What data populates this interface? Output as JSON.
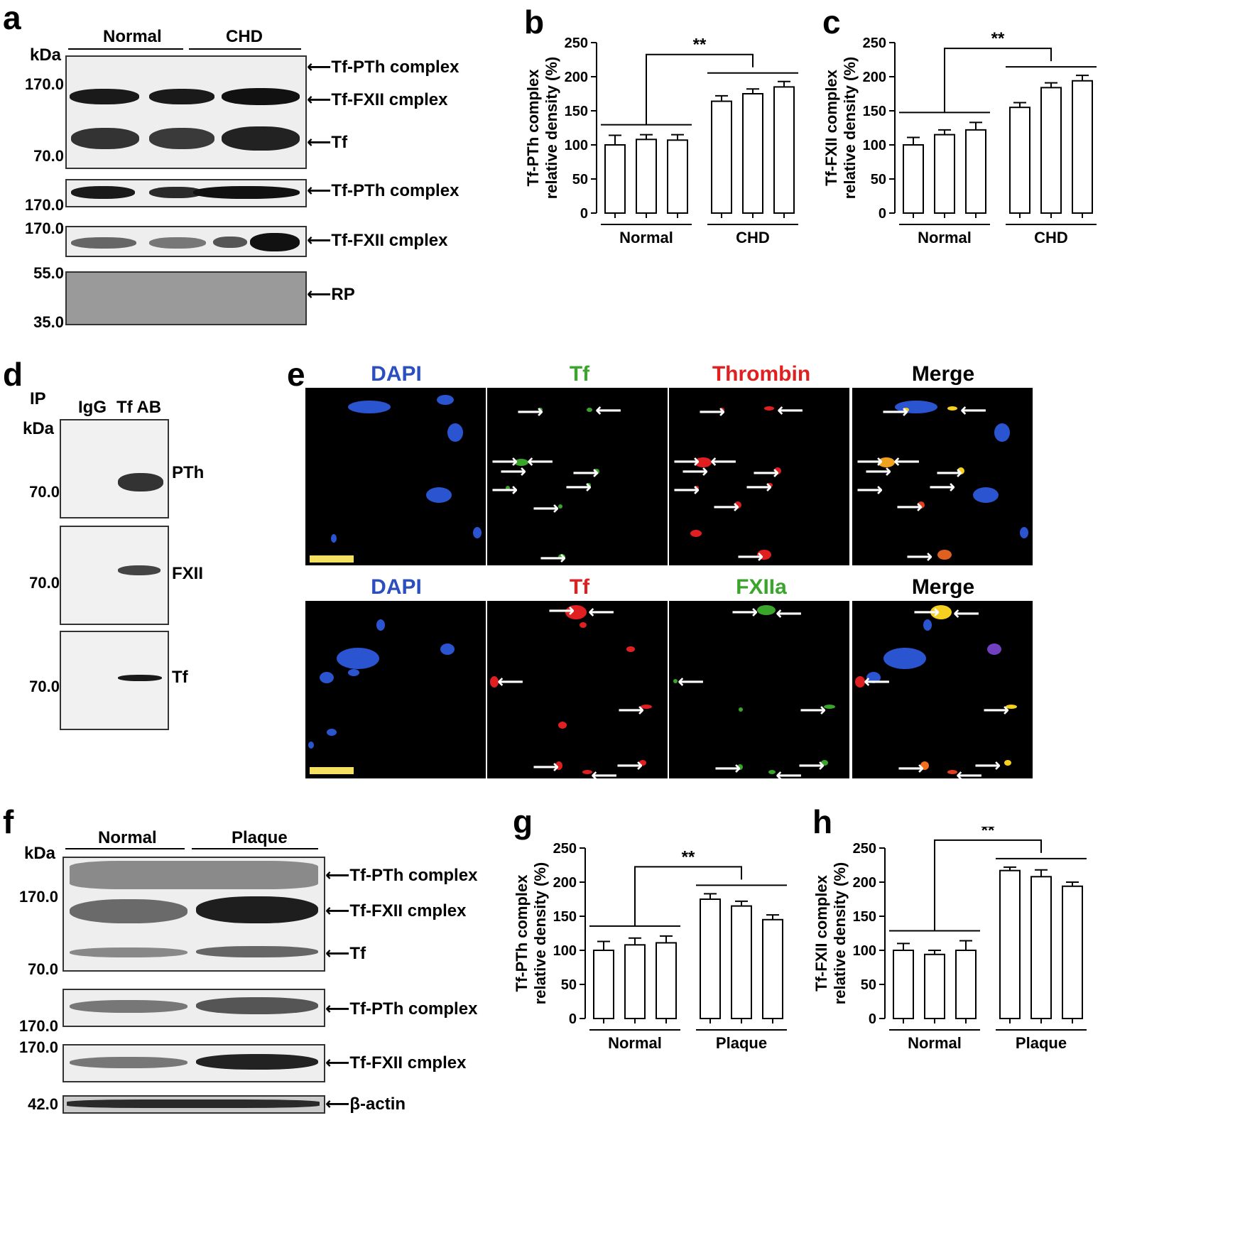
{
  "panels": {
    "a": "a",
    "b": "b",
    "c": "c",
    "d": "d",
    "e": "e",
    "f": "f",
    "g": "g",
    "h": "h"
  },
  "panel_a": {
    "groups": [
      "Normal",
      "CHD"
    ],
    "kda": "kDa",
    "mw": [
      "170.0",
      "70.0",
      "170.0",
      "170.0",
      "55.0",
      "35.0"
    ],
    "labels": [
      "Tf-PTh complex",
      "Tf-FXII cmplex",
      "Tf",
      "Tf-PTh complex",
      "Tf-FXII cmplex",
      "RP"
    ]
  },
  "panel_d": {
    "ip": "IP",
    "lanes": [
      "IgG",
      "Tf AB"
    ],
    "kda": "kDa",
    "mw": [
      "70.0",
      "70.0",
      "70.0"
    ],
    "labels": [
      "PTh",
      "FXII",
      "Tf"
    ]
  },
  "panel_e": {
    "row1": [
      "DAPI",
      "Tf",
      "Thrombin",
      "Merge"
    ],
    "row2": [
      "DAPI",
      "Tf",
      "FXIIa",
      "Merge"
    ],
    "colors": {
      "blue": "#2b4fbf",
      "green": "#3aa52b",
      "red": "#e02020",
      "yellow": "#f5e060"
    }
  },
  "panel_f": {
    "groups": [
      "Normal",
      "Plaque"
    ],
    "kda": "kDa",
    "mw": [
      "170.0",
      "70.0",
      "170.0",
      "170.0",
      "42.0"
    ],
    "labels": [
      "Tf-PTh complex",
      "Tf-FXII cmplex",
      "Tf",
      "Tf-PTh complex",
      "Tf-FXII cmplex",
      "β-actin"
    ]
  },
  "chart_data": [
    {
      "id": "b",
      "type": "bar",
      "ylabel": [
        "Tf-PTh complex",
        "relative density (%)"
      ],
      "ylim": [
        0,
        250
      ],
      "yticks": [
        0,
        50,
        100,
        150,
        200,
        250
      ],
      "groups": [
        "Normal",
        "CHD"
      ],
      "values": [
        100,
        108,
        107,
        164,
        175,
        185
      ],
      "errors": [
        14,
        7,
        8,
        8,
        7,
        8
      ],
      "significance": "**"
    },
    {
      "id": "c",
      "type": "bar",
      "ylabel": [
        "Tf-FXII complex",
        "relative density (%)"
      ],
      "ylim": [
        0,
        250
      ],
      "yticks": [
        0,
        50,
        100,
        150,
        200,
        250
      ],
      "groups": [
        "Normal",
        "CHD"
      ],
      "values": [
        100,
        115,
        122,
        155,
        184,
        194
      ],
      "errors": [
        11,
        7,
        11,
        7,
        7,
        8
      ],
      "significance": "**"
    },
    {
      "id": "g",
      "type": "bar",
      "ylabel": [
        "Tf-PTh complex",
        "relative density (%)"
      ],
      "ylim": [
        0,
        250
      ],
      "yticks": [
        0,
        50,
        100,
        150,
        200,
        250
      ],
      "groups": [
        "Normal",
        "Plaque"
      ],
      "values": [
        100,
        108,
        111,
        175,
        165,
        145
      ],
      "errors": [
        13,
        10,
        10,
        8,
        7,
        7
      ],
      "significance": "**"
    },
    {
      "id": "h",
      "type": "bar",
      "ylabel": [
        "Tf-FXII complex",
        "relative density (%)"
      ],
      "ylim": [
        0,
        250
      ],
      "yticks": [
        0,
        50,
        100,
        150,
        200,
        250
      ],
      "groups": [
        "Normal",
        "Plaque"
      ],
      "values": [
        100,
        94,
        100,
        217,
        208,
        194
      ],
      "errors": [
        10,
        6,
        14,
        5,
        10,
        6
      ],
      "significance": "**"
    }
  ]
}
